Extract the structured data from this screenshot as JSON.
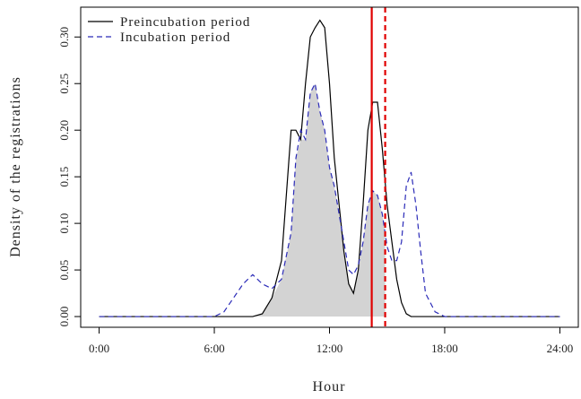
{
  "chart_data": {
    "type": "line",
    "xlabel": "Hour",
    "ylabel": "Density of the registrations",
    "x": [
      0,
      6,
      6.5,
      7,
      7.5,
      8,
      8.5,
      9,
      9.5,
      10,
      10.25,
      10.5,
      10.75,
      11,
      11.25,
      11.5,
      11.75,
      12,
      12.25,
      12.5,
      12.75,
      13,
      13.25,
      13.5,
      13.75,
      14,
      14.25,
      14.5,
      14.75,
      15,
      15.25,
      15.5,
      15.75,
      16,
      16.25,
      16.5,
      16.75,
      17,
      17.5,
      18,
      24
    ],
    "series": [
      {
        "name": "Preincubation period",
        "color": "#000000",
        "dash": "solid",
        "values": [
          0,
          0,
          0,
          0,
          0,
          0,
          0.003,
          0.02,
          0.06,
          0.2,
          0.2,
          0.19,
          0.25,
          0.3,
          0.31,
          0.318,
          0.31,
          0.25,
          0.17,
          0.12,
          0.07,
          0.035,
          0.025,
          0.05,
          0.12,
          0.2,
          0.23,
          0.23,
          0.18,
          0.12,
          0.08,
          0.04,
          0.015,
          0.003,
          0,
          0,
          0,
          0,
          0,
          0,
          0
        ]
      },
      {
        "name": "Incubation period",
        "color": "#2b2bb8",
        "dash": "dashed",
        "values": [
          0,
          0,
          0.005,
          0.02,
          0.035,
          0.045,
          0.035,
          0.03,
          0.04,
          0.09,
          0.17,
          0.2,
          0.19,
          0.24,
          0.25,
          0.22,
          0.2,
          0.16,
          0.14,
          0.11,
          0.08,
          0.05,
          0.045,
          0.055,
          0.08,
          0.12,
          0.135,
          0.13,
          0.11,
          0.075,
          0.06,
          0.06,
          0.08,
          0.14,
          0.155,
          0.12,
          0.07,
          0.025,
          0.005,
          0,
          0
        ]
      }
    ],
    "vlines": [
      {
        "x": 14.2,
        "color": "#e00000",
        "dash": "solid"
      },
      {
        "x": 14.9,
        "color": "#e00000",
        "dash": "dashed"
      }
    ],
    "shade_color": "#d3d3d3",
    "xlim": [
      -0.96,
      24.96
    ],
    "ylim": [
      -0.0115,
      0.332
    ],
    "xticks": [
      {
        "value": 0,
        "label": "0:00"
      },
      {
        "value": 6,
        "label": "6:00"
      },
      {
        "value": 12,
        "label": "12:00"
      },
      {
        "value": 18,
        "label": "18:00"
      },
      {
        "value": 24,
        "label": "24:00"
      }
    ],
    "yticks": [
      {
        "value": 0,
        "label": "0.00"
      },
      {
        "value": 0.05,
        "label": "0.05"
      },
      {
        "value": 0.1,
        "label": "0.10"
      },
      {
        "value": 0.15,
        "label": "0.15"
      },
      {
        "value": 0.2,
        "label": "0.20"
      },
      {
        "value": 0.25,
        "label": "0.25"
      },
      {
        "value": 0.3,
        "label": "0.30"
      }
    ],
    "legend": "top-left"
  }
}
